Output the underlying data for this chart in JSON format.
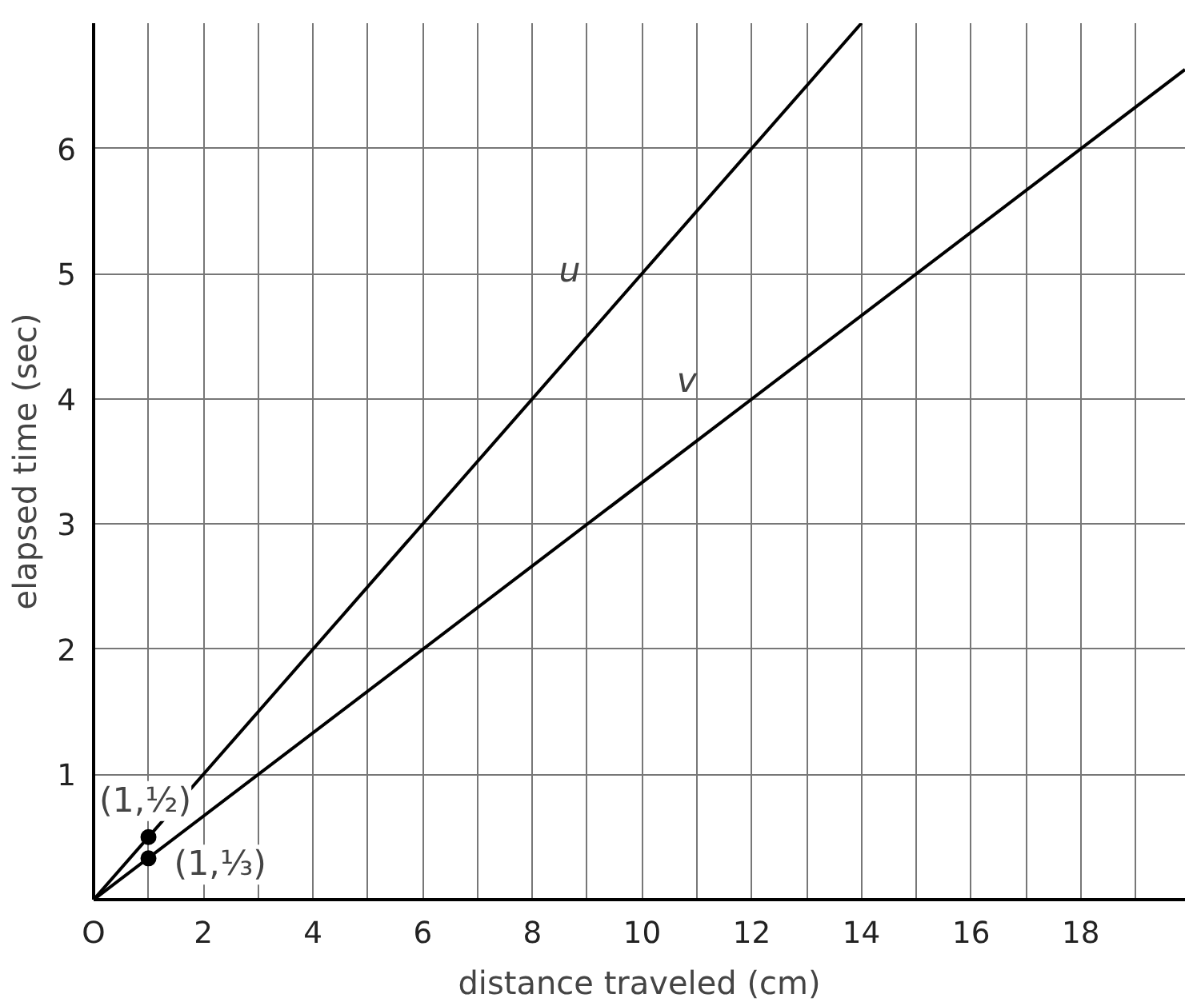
{
  "chart_data": {
    "type": "line",
    "xlabel": "distance traveled (cm)",
    "ylabel": "elapsed time (sec)",
    "xlim": [
      0,
      19.9
    ],
    "ylim": [
      0,
      7
    ],
    "xticks": [
      {
        "value": 0,
        "label": "O"
      },
      {
        "value": 1,
        "label": null
      },
      2,
      {
        "value": 3,
        "label": null
      },
      4,
      {
        "value": 5,
        "label": null
      },
      6,
      {
        "value": 7,
        "label": null
      },
      8,
      {
        "value": 9,
        "label": null
      },
      10,
      {
        "value": 11,
        "label": null
      },
      12,
      {
        "value": 13,
        "label": null
      },
      14,
      {
        "value": 15,
        "label": null
      },
      16,
      {
        "value": 17,
        "label": null
      },
      18,
      {
        "value": 19,
        "label": null
      }
    ],
    "yticks": [
      1,
      2,
      3,
      4,
      5,
      6
    ],
    "grid": true,
    "legend": false,
    "line_style": "solid",
    "marker": "none",
    "series": [
      {
        "name": "u",
        "color": "#000000",
        "x": [
          0,
          14
        ],
        "values": [
          0,
          7
        ]
      },
      {
        "name": "v",
        "color": "#000000",
        "x": [
          0,
          19.9
        ],
        "values": [
          0,
          6.63
        ]
      },
      {
        "type": "scatter",
        "marker": "circle",
        "color": "#000000",
        "x": [
          1,
          1
        ],
        "values": [
          0.5,
          0.33
        ]
      }
    ],
    "annotations": [
      {
        "text": "(1,½)",
        "x": 1,
        "y": 0.5
      },
      {
        "text": "(1,⅓)",
        "x": 1,
        "y": 0.33
      }
    ]
  }
}
